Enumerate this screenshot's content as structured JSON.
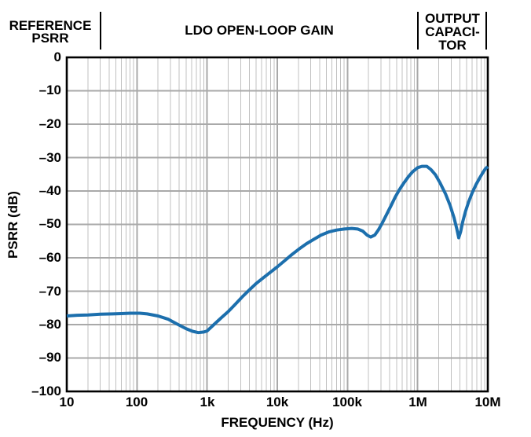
{
  "figure": {
    "background": "#ffffff",
    "text_color": "#000000"
  },
  "chart_data": {
    "type": "line",
    "title": "",
    "xlabel": "FREQUENCY (Hz)",
    "ylabel": "PSRR (dB)",
    "x_scale": "log",
    "xlim": [
      10,
      10000000
    ],
    "ylim": [
      -100,
      0
    ],
    "x_ticks": [
      "10",
      "100",
      "1k",
      "10k",
      "100k",
      "1M",
      "10M"
    ],
    "y_ticks": [
      "0",
      "–10",
      "–20",
      "–30",
      "–40",
      "–50",
      "–60",
      "–70",
      "–80",
      "–90",
      "–100"
    ],
    "grid": {
      "enabled": true,
      "major_color": "#a9a9a9",
      "minor_color": "#c0c0c0",
      "border_color": "#000000"
    },
    "legend": "none",
    "annotations": [
      {
        "label": "REFERENCE\nPSRR",
        "x_range": [
          10,
          30
        ]
      },
      {
        "label": "LDO OPEN-LOOP GAIN",
        "x_range": [
          30,
          1000000
        ]
      },
      {
        "label": "OUTPUT\nCAPACI-\nTOR",
        "x_range": [
          1000000,
          10000000
        ]
      }
    ],
    "series": [
      {
        "name": "PSRR",
        "color": "#1c6fad",
        "points": [
          [
            10,
            -77.4
          ],
          [
            14,
            -77.2
          ],
          [
            20,
            -77.1
          ],
          [
            30,
            -76.9
          ],
          [
            45,
            -76.8
          ],
          [
            60,
            -76.7
          ],
          [
            80,
            -76.6
          ],
          [
            110,
            -76.6
          ],
          [
            140,
            -76.8
          ],
          [
            200,
            -77.4
          ],
          [
            280,
            -78.4
          ],
          [
            380,
            -79.9
          ],
          [
            500,
            -81.2
          ],
          [
            620,
            -82.0
          ],
          [
            750,
            -82.4
          ],
          [
            900,
            -82.2
          ],
          [
            1000,
            -81.9
          ],
          [
            1250,
            -80.0
          ],
          [
            1600,
            -77.9
          ],
          [
            2000,
            -76.1
          ],
          [
            2500,
            -74.0
          ],
          [
            3200,
            -71.6
          ],
          [
            4000,
            -69.6
          ],
          [
            5000,
            -67.7
          ],
          [
            6500,
            -65.8
          ],
          [
            8000,
            -64.3
          ],
          [
            10000,
            -62.7
          ],
          [
            13000,
            -60.7
          ],
          [
            16000,
            -59.1
          ],
          [
            20000,
            -57.5
          ],
          [
            26000,
            -55.8
          ],
          [
            33000,
            -54.5
          ],
          [
            42000,
            -53.2
          ],
          [
            55000,
            -52.2
          ],
          [
            70000,
            -51.7
          ],
          [
            90000,
            -51.4
          ],
          [
            115000,
            -51.2
          ],
          [
            140000,
            -51.4
          ],
          [
            165000,
            -52.0
          ],
          [
            190000,
            -53.2
          ],
          [
            215000,
            -53.8
          ],
          [
            245000,
            -53.2
          ],
          [
            275000,
            -51.7
          ],
          [
            310000,
            -49.8
          ],
          [
            360000,
            -47.1
          ],
          [
            420000,
            -44.3
          ],
          [
            480000,
            -41.8
          ],
          [
            550000,
            -39.6
          ],
          [
            640000,
            -37.5
          ],
          [
            740000,
            -35.7
          ],
          [
            850000,
            -34.2
          ],
          [
            1000000,
            -33.0
          ],
          [
            1150000,
            -32.6
          ],
          [
            1350000,
            -32.6
          ],
          [
            1550000,
            -33.6
          ],
          [
            1800000,
            -35.2
          ],
          [
            2100000,
            -37.7
          ],
          [
            2500000,
            -40.9
          ],
          [
            2900000,
            -44.3
          ],
          [
            3300000,
            -48.0
          ],
          [
            3600000,
            -51.2
          ],
          [
            3850000,
            -54.0
          ],
          [
            4100000,
            -52.2
          ],
          [
            4400000,
            -49.2
          ],
          [
            4800000,
            -46.2
          ],
          [
            5300000,
            -43.4
          ],
          [
            6000000,
            -40.5
          ],
          [
            6800000,
            -38.1
          ],
          [
            7600000,
            -36.2
          ],
          [
            8500000,
            -34.5
          ],
          [
            9200000,
            -33.4
          ],
          [
            10000000,
            -32.7
          ]
        ]
      }
    ]
  }
}
